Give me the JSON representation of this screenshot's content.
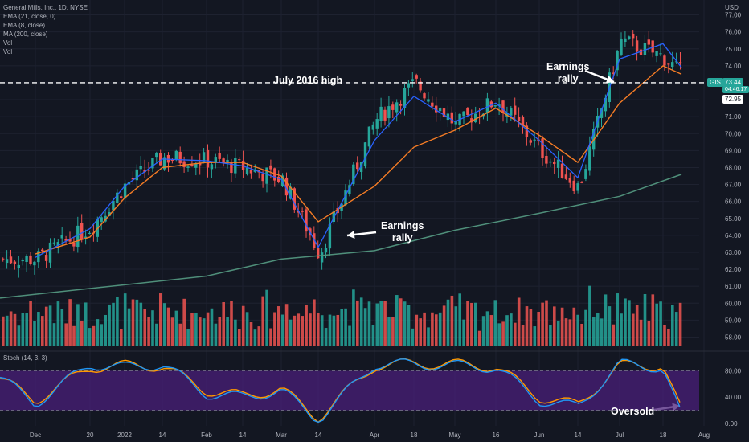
{
  "legend": {
    "title": "General Mills, Inc., 1D, NYSE",
    "lines": [
      "EMA (21, close, 0)",
      "EMA (8, close)",
      "MA (200, close)",
      "Vol",
      "Vol"
    ]
  },
  "stoch_label": "Stoch (14, 3, 3)",
  "annotations": {
    "july_high": "July 2016 high",
    "earnings_rally_1": [
      "Earnings",
      "rally"
    ],
    "earnings_rally_2": [
      "Earnings",
      "rally"
    ],
    "oversold": "Oversold"
  },
  "price_tags": {
    "ticker": "GIS",
    "last": "73.44",
    "countdown": "04:46:17",
    "level": "72.95"
  },
  "colors": {
    "background": "#131722",
    "up": "#26a69a",
    "down": "#ef5350",
    "ema21": "#f57c25",
    "ema8": "#2962ff",
    "ma200": "#4f8f7a",
    "stoch_k": "#2196f3",
    "stoch_d": "#ff9800",
    "stoch_band": "#4a1f7a"
  },
  "chart_data": {
    "type": "candlestick",
    "unit": "USD",
    "y_ticks": [
      "77.00",
      "76.00",
      "75.00",
      "74.00",
      "73.00",
      "72.00",
      "71.00",
      "70.00",
      "69.00",
      "68.00",
      "67.00",
      "66.00",
      "65.00",
      "64.00",
      "63.00",
      "62.00",
      "61.00",
      "60.00",
      "59.00",
      "58.00"
    ],
    "ylim": [
      57.5,
      77.5
    ],
    "reference_line": {
      "label": "July 2016 high",
      "value": 73.0
    },
    "x_ticks": [
      "Dec",
      "20",
      "2022",
      "14",
      "Feb",
      "14",
      "Mar",
      "14",
      "Apr",
      "18",
      "May",
      "16",
      "Jun",
      "14",
      "Jul",
      "18",
      "Aug"
    ],
    "close_path": [
      [
        "Dec",
        62.6
      ],
      [
        "20",
        64.5
      ],
      [
        "2022",
        67.0
      ],
      [
        "14",
        68.6
      ],
      [
        "Feb",
        68.4
      ],
      [
        "14",
        68.0
      ],
      [
        "Mar",
        67.3
      ],
      [
        "14",
        62.9
      ],
      [
        "Apr",
        70.8
      ],
      [
        "18",
        73.0
      ],
      [
        "May",
        70.5
      ],
      [
        "16",
        72.0
      ],
      [
        "Jun",
        69.0
      ],
      [
        "14",
        66.8
      ],
      [
        "Jul",
        75.5
      ],
      [
        "18",
        74.5
      ],
      [
        "end",
        73.44
      ]
    ],
    "ema21_path": [
      [
        "Dec",
        62.9
      ],
      [
        "20",
        63.9
      ],
      [
        "2022",
        66.2
      ],
      [
        "14",
        68.0
      ],
      [
        "Feb",
        68.3
      ],
      [
        "14",
        68.3
      ],
      [
        "Mar",
        67.5
      ],
      [
        "14",
        64.8
      ],
      [
        "Apr",
        66.9
      ],
      [
        "18",
        69.2
      ],
      [
        "May",
        70.2
      ],
      [
        "16",
        71.5
      ],
      [
        "Jun",
        69.9
      ],
      [
        "14",
        68.3
      ],
      [
        "Jul",
        71.8
      ],
      [
        "18",
        74.0
      ],
      [
        "end",
        73.5
      ]
    ],
    "ema8_path": [
      [
        "Dec",
        62.7
      ],
      [
        "20",
        64.4
      ],
      [
        "2022",
        66.9
      ],
      [
        "14",
        68.5
      ],
      [
        "Feb",
        68.4
      ],
      [
        "14",
        68.1
      ],
      [
        "Mar",
        67.3
      ],
      [
        "14",
        63.3
      ],
      [
        "Apr",
        69.6
      ],
      [
        "18",
        72.2
      ],
      [
        "May",
        70.7
      ],
      [
        "16",
        71.8
      ],
      [
        "Jun",
        69.6
      ],
      [
        "14",
        67.4
      ],
      [
        "Jul",
        74.4
      ],
      [
        "18",
        75.3
      ],
      [
        "end",
        73.9
      ]
    ],
    "ma200_path": [
      [
        "start",
        60.3
      ],
      [
        "Feb",
        61.6
      ],
      [
        "Mar",
        62.6
      ],
      [
        "Apr",
        63.1
      ],
      [
        "May",
        64.3
      ],
      [
        "Jun",
        65.3
      ],
      [
        "Jul",
        66.3
      ],
      [
        "end",
        67.6
      ]
    ],
    "stoch": {
      "y_ticks": [
        "80.00",
        "40.00",
        "0.00"
      ],
      "upper_band": 80,
      "lower_band": 20,
      "k_path": [
        [
          "start",
          70
        ],
        [
          "Dec",
          30
        ],
        [
          "20",
          90
        ],
        [
          "2022",
          85
        ],
        [
          "14",
          90
        ],
        [
          "Feb",
          45
        ],
        [
          "14",
          40
        ],
        [
          "Mar",
          50
        ],
        [
          "14",
          5
        ],
        [
          "Apr",
          90
        ],
        [
          "18",
          90
        ],
        [
          "May",
          88
        ],
        [
          "16",
          85
        ],
        [
          "Jun",
          35
        ],
        [
          "14",
          25
        ],
        [
          "Jul",
          90
        ],
        [
          "18",
          85
        ],
        [
          "end",
          10
        ]
      ],
      "d_path": [
        [
          "start",
          68
        ],
        [
          "Dec",
          35
        ],
        [
          "20",
          85
        ],
        [
          "2022",
          88
        ],
        [
          "14",
          87
        ],
        [
          "Feb",
          50
        ],
        [
          "14",
          42
        ],
        [
          "Mar",
          52
        ],
        [
          "14",
          8
        ],
        [
          "Apr",
          88
        ],
        [
          "18",
          91
        ],
        [
          "May",
          90
        ],
        [
          "16",
          86
        ],
        [
          "Jun",
          40
        ],
        [
          "14",
          28
        ],
        [
          "Jul",
          88
        ],
        [
          "18",
          88
        ],
        [
          "end",
          18
        ]
      ]
    }
  }
}
